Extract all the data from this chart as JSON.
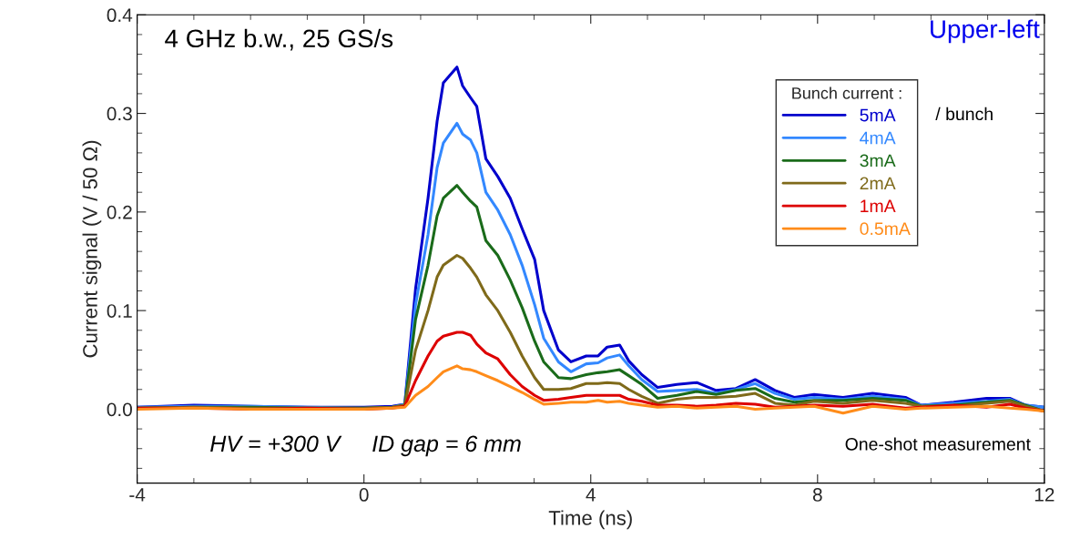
{
  "chart_data": {
    "type": "line",
    "xlabel": "Time (ns)",
    "ylabel": "Current signal (V / 50 Ω)",
    "legend_title": "Bunch current :",
    "x": [
      -4,
      -3,
      -2,
      -1,
      0,
      0.5,
      0.72,
      0.91,
      1.13,
      1.29,
      1.4,
      1.64,
      1.74,
      1.88,
      1.99,
      2.15,
      2.36,
      2.58,
      2.79,
      3.01,
      3.17,
      3.43,
      3.65,
      3.92,
      4.13,
      4.29,
      4.51,
      4.67,
      4.9,
      5.18,
      5.52,
      5.87,
      6.21,
      6.56,
      6.9,
      7.25,
      7.59,
      7.94,
      8.45,
      8.97,
      9.55,
      9.83,
      10.4,
      10.98,
      11.39,
      11.67,
      12
    ],
    "series": [
      {
        "name": "5mA",
        "color": "#0000cc",
        "values": [
          0.002,
          0.004,
          0.003,
          0.002,
          0.002,
          0.003,
          0.005,
          0.122,
          0.214,
          0.292,
          0.331,
          0.347,
          0.328,
          0.316,
          0.307,
          0.254,
          0.236,
          0.214,
          0.183,
          0.152,
          0.1,
          0.06,
          0.048,
          0.054,
          0.054,
          0.063,
          0.065,
          0.049,
          0.035,
          0.022,
          0.025,
          0.027,
          0.019,
          0.021,
          0.03,
          0.019,
          0.012,
          0.015,
          0.012,
          0.016,
          0.012,
          0.004,
          0.007,
          0.011,
          0.011,
          0.004,
          0.002
        ]
      },
      {
        "name": "4mA",
        "color": "#3388ff",
        "values": [
          0.002,
          0.003,
          0.003,
          0.002,
          0.001,
          0.002,
          0.005,
          0.106,
          0.177,
          0.245,
          0.27,
          0.29,
          0.279,
          0.273,
          0.26,
          0.22,
          0.202,
          0.177,
          0.146,
          0.106,
          0.072,
          0.048,
          0.038,
          0.046,
          0.047,
          0.052,
          0.055,
          0.044,
          0.03,
          0.018,
          0.019,
          0.02,
          0.016,
          0.02,
          0.026,
          0.016,
          0.01,
          0.012,
          0.01,
          0.013,
          0.01,
          0.004,
          0.006,
          0.008,
          0.01,
          0.004,
          0.002
        ]
      },
      {
        "name": "3mA",
        "color": "#1a6b1a",
        "values": [
          0.001,
          0.002,
          0.002,
          0.001,
          0.001,
          0.002,
          0.004,
          0.091,
          0.146,
          0.196,
          0.214,
          0.227,
          0.22,
          0.211,
          0.205,
          0.171,
          0.156,
          0.131,
          0.103,
          0.069,
          0.048,
          0.032,
          0.031,
          0.035,
          0.037,
          0.038,
          0.04,
          0.034,
          0.025,
          0.011,
          0.014,
          0.018,
          0.015,
          0.019,
          0.021,
          0.011,
          0.007,
          0.009,
          0.009,
          0.011,
          0.009,
          0.003,
          0.004,
          0.007,
          0.009,
          0.004,
          -0.002
        ]
      },
      {
        "name": "2mA",
        "color": "#7f6a1a",
        "values": [
          0.001,
          0.002,
          0.001,
          0.001,
          0.001,
          0.002,
          0.004,
          0.06,
          0.1,
          0.134,
          0.146,
          0.156,
          0.153,
          0.143,
          0.134,
          0.116,
          0.1,
          0.078,
          0.054,
          0.032,
          0.02,
          0.02,
          0.021,
          0.026,
          0.026,
          0.027,
          0.026,
          0.02,
          0.013,
          0.006,
          0.01,
          0.012,
          0.012,
          0.013,
          0.016,
          0.006,
          0.004,
          0.008,
          0.006,
          0.009,
          0.006,
          0.003,
          0.003,
          0.006,
          0.008,
          0.003,
          -0.002
        ]
      },
      {
        "name": "1mA",
        "color": "#dd0000",
        "values": [
          0.001,
          0.001,
          0.0,
          0.001,
          0.0,
          0.001,
          0.003,
          0.029,
          0.054,
          0.069,
          0.074,
          0.078,
          0.078,
          0.075,
          0.066,
          0.057,
          0.051,
          0.035,
          0.023,
          0.014,
          0.009,
          0.01,
          0.012,
          0.014,
          0.014,
          0.014,
          0.014,
          0.01,
          0.008,
          0.004,
          0.004,
          0.003,
          0.004,
          0.006,
          0.005,
          0.002,
          0.003,
          0.004,
          0.003,
          0.005,
          0.001,
          0.002,
          0.004,
          0.002,
          0.005,
          0.001,
          -0.002
        ]
      },
      {
        "name": "0.5mA",
        "color": "#ff8c1a",
        "values": [
          0.0,
          0.001,
          0.0,
          0.0,
          0.0,
          0.001,
          0.002,
          0.014,
          0.023,
          0.032,
          0.038,
          0.044,
          0.041,
          0.04,
          0.038,
          0.034,
          0.029,
          0.023,
          0.017,
          0.01,
          0.005,
          0.006,
          0.007,
          0.007,
          0.009,
          0.007,
          0.008,
          0.006,
          0.004,
          0.002,
          0.003,
          0.001,
          0.002,
          0.003,
          0.0,
          0.001,
          0.002,
          0.003,
          -0.004,
          0.003,
          0.0,
          0.001,
          0.002,
          0.003,
          0.001,
          0.0,
          -0.002
        ]
      }
    ],
    "xlim": [
      -4,
      12
    ],
    "ylim": [
      -0.075,
      0.4
    ],
    "xticks": [
      -4,
      0,
      4,
      8,
      12
    ],
    "yticks": [
      {
        "value": 0,
        "label": "0.0"
      },
      0.1,
      0.2,
      0.3,
      0.4
    ],
    "grid": false,
    "legend": "top right",
    "marker": "none",
    "line_style": "solid",
    "annotations": [
      "4 GHz b.w., 25 GS/s",
      "Upper-left",
      "/ bunch",
      "HV = +300 V     ID gap = 6 mm",
      "One-shot measurement"
    ]
  }
}
